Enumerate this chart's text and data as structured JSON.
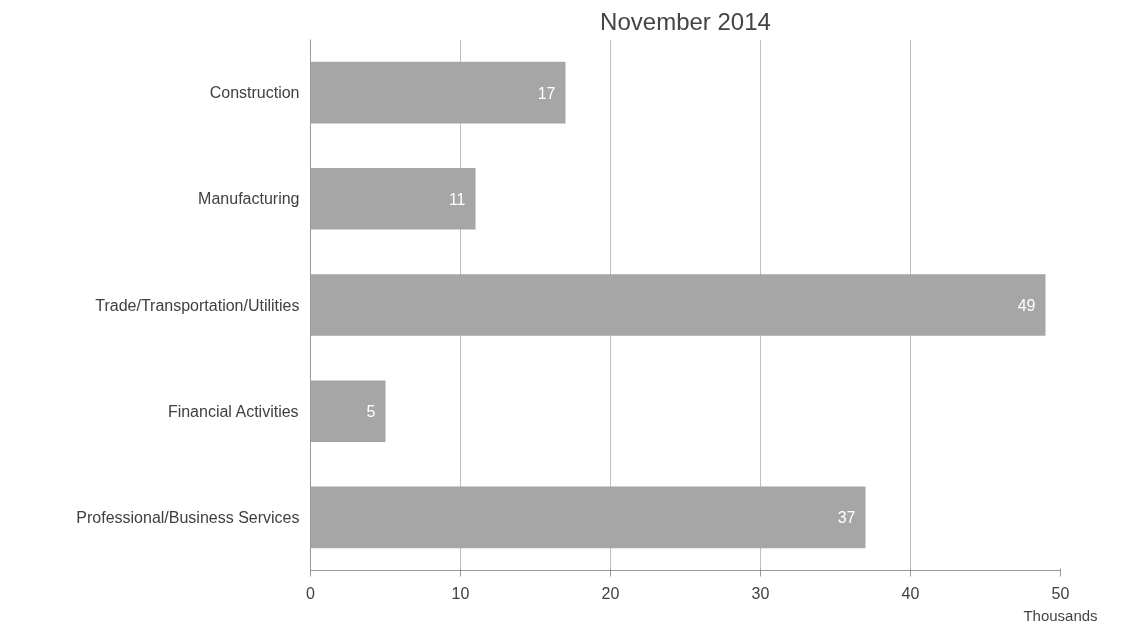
{
  "chart_data": {
    "type": "bar",
    "orientation": "horizontal",
    "title": "November 2014",
    "xlabel": "Thousands",
    "categories": [
      "Construction",
      "Manufacturing",
      "Trade/Transportation/Utilities",
      "Financial Activities",
      "Professional/Business Services"
    ],
    "values": [
      17,
      11,
      49,
      5,
      37
    ],
    "color": "#a6a6a6",
    "data_labels": true,
    "xlim": [
      0,
      50
    ],
    "xticks": [
      0,
      10,
      20,
      30,
      40,
      50
    ],
    "grid": "x"
  }
}
